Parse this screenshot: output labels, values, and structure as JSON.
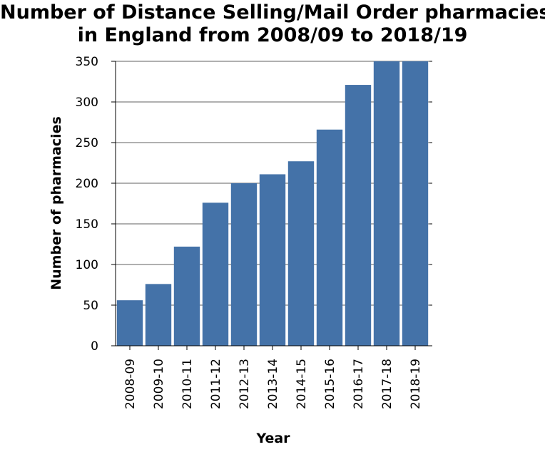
{
  "chart_data": {
    "type": "bar",
    "title_lines": [
      "Number of Distance Selling/Mail Order pharmacies",
      "in England from 2008/09 to 2018/19"
    ],
    "xlabel": "Year",
    "ylabel": "Number of pharmacies",
    "categories": [
      "2008-09",
      "2009-10",
      "2010-11",
      "2011-12",
      "2012-13",
      "2013-14",
      "2014-15",
      "2015-16",
      "2016-17",
      "2017-18",
      "2018-19"
    ],
    "values": [
      56,
      76,
      122,
      176,
      200,
      211,
      227,
      266,
      321,
      350,
      350
    ],
    "ylim": [
      0,
      350
    ],
    "yticks": [
      0,
      50,
      100,
      150,
      200,
      250,
      300,
      350
    ],
    "grid": true,
    "bar_color": "#4472a8",
    "grid_color": "#808080"
  }
}
